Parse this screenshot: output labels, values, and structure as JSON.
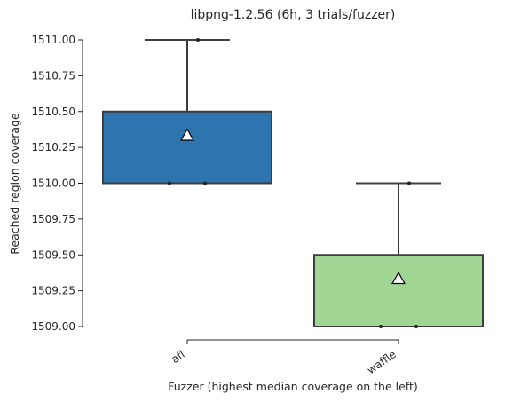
{
  "chart_data": {
    "type": "box",
    "title": "libpng-1.2.56 (6h, 3 trials/fuzzer)",
    "xlabel": "Fuzzer (highest median coverage on the left)",
    "ylabel": "Reached region coverage",
    "ylim": [
      1509.0,
      1511.0
    ],
    "yticks": [
      1509.0,
      1509.25,
      1509.5,
      1509.75,
      1510.0,
      1510.25,
      1510.5,
      1510.75,
      1511.0
    ],
    "ytick_labels": [
      "1509.00",
      "1509.25",
      "1509.50",
      "1509.75",
      "1510.00",
      "1510.25",
      "1510.50",
      "1510.75",
      "1511.00"
    ],
    "categories": [
      "afl",
      "waffle"
    ],
    "boxes": [
      {
        "name": "afl",
        "color": "#2e75b0",
        "whisker_low": 1510.0,
        "q1": 1510.0,
        "median": 1510.0,
        "q3": 1510.5,
        "whisker_high": 1511.0,
        "mean": 1510.333,
        "points": [
          1510.0,
          1510.0,
          1511.0
        ]
      },
      {
        "name": "waffle",
        "color": "#a0d594",
        "whisker_low": 1509.0,
        "q1": 1509.0,
        "median": 1509.0,
        "q3": 1509.5,
        "whisker_high": 1510.0,
        "mean": 1509.333,
        "points": [
          1509.0,
          1509.0,
          1510.0
        ]
      }
    ],
    "grid": false,
    "legend": "none"
  }
}
